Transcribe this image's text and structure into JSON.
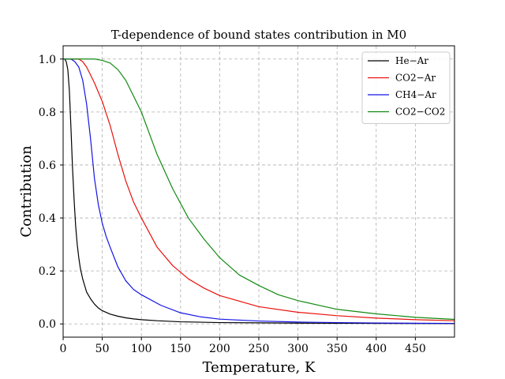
{
  "chart_data": {
    "type": "line",
    "title": "T-dependence of bound states contribution in M0",
    "xlabel": "Temperature, K",
    "ylabel": "Contribution",
    "xlim": [
      0,
      500
    ],
    "ylim": [
      -0.05,
      1.05
    ],
    "xticks": [
      0,
      50,
      100,
      150,
      200,
      250,
      300,
      350,
      400,
      450
    ],
    "yticks": [
      0.0,
      0.2,
      0.4,
      0.6,
      0.8,
      1.0
    ],
    "xtick_labels": [
      "0",
      "50",
      "100",
      "150",
      "200",
      "250",
      "300",
      "350",
      "400",
      "450"
    ],
    "ytick_labels": [
      "0.0",
      "0.2",
      "0.4",
      "0.6",
      "0.8",
      "1.0"
    ],
    "grid": true,
    "legend_position": "top-right",
    "series": [
      {
        "name": "He−Ar",
        "color": "#000000",
        "x": [
          0,
          2,
          4,
          6,
          8,
          10,
          12,
          14,
          16,
          18,
          20,
          22,
          25,
          28,
          30,
          35,
          40,
          45,
          50,
          60,
          70,
          80,
          90,
          100,
          120,
          150,
          200,
          250,
          300,
          400,
          500
        ],
        "y": [
          1.0,
          1.0,
          0.99,
          0.96,
          0.88,
          0.74,
          0.59,
          0.47,
          0.37,
          0.3,
          0.25,
          0.21,
          0.17,
          0.14,
          0.12,
          0.095,
          0.075,
          0.06,
          0.05,
          0.037,
          0.029,
          0.023,
          0.019,
          0.016,
          0.012,
          0.008,
          0.005,
          0.004,
          0.003,
          0.002,
          0.0015
        ]
      },
      {
        "name": "CO2−Ar",
        "color": "#e8120c",
        "x": [
          0,
          10,
          20,
          25,
          30,
          35,
          40,
          50,
          60,
          70,
          80,
          90,
          100,
          120,
          140,
          160,
          180,
          200,
          250,
          300,
          350,
          400,
          450,
          500
        ],
        "y": [
          1.0,
          1.0,
          1.0,
          0.99,
          0.97,
          0.94,
          0.91,
          0.84,
          0.75,
          0.64,
          0.54,
          0.46,
          0.4,
          0.29,
          0.22,
          0.17,
          0.135,
          0.107,
          0.065,
          0.044,
          0.031,
          0.022,
          0.016,
          0.012
        ]
      },
      {
        "name": "CH4−Ar",
        "color": "#1414e6",
        "x": [
          0,
          10,
          15,
          20,
          25,
          30,
          35,
          40,
          45,
          50,
          55,
          60,
          70,
          80,
          90,
          100,
          125,
          150,
          175,
          200,
          250,
          300,
          350,
          400,
          450,
          500
        ],
        "y": [
          1.0,
          1.0,
          0.99,
          0.97,
          0.92,
          0.83,
          0.7,
          0.55,
          0.45,
          0.38,
          0.33,
          0.29,
          0.215,
          0.163,
          0.13,
          0.11,
          0.07,
          0.042,
          0.027,
          0.018,
          0.011,
          0.007,
          0.005,
          0.0035,
          0.0025,
          0.002
        ]
      },
      {
        "name": "CO2−CO2",
        "color": "#128a12",
        "x": [
          0,
          20,
          30,
          40,
          50,
          60,
          70,
          80,
          90,
          100,
          120,
          140,
          160,
          180,
          200,
          225,
          250,
          275,
          300,
          350,
          400,
          450,
          500
        ],
        "y": [
          1.0,
          1.0,
          1.0,
          1.0,
          0.995,
          0.985,
          0.96,
          0.92,
          0.86,
          0.8,
          0.64,
          0.51,
          0.4,
          0.32,
          0.25,
          0.185,
          0.145,
          0.11,
          0.088,
          0.055,
          0.038,
          0.025,
          0.017
        ]
      }
    ]
  }
}
